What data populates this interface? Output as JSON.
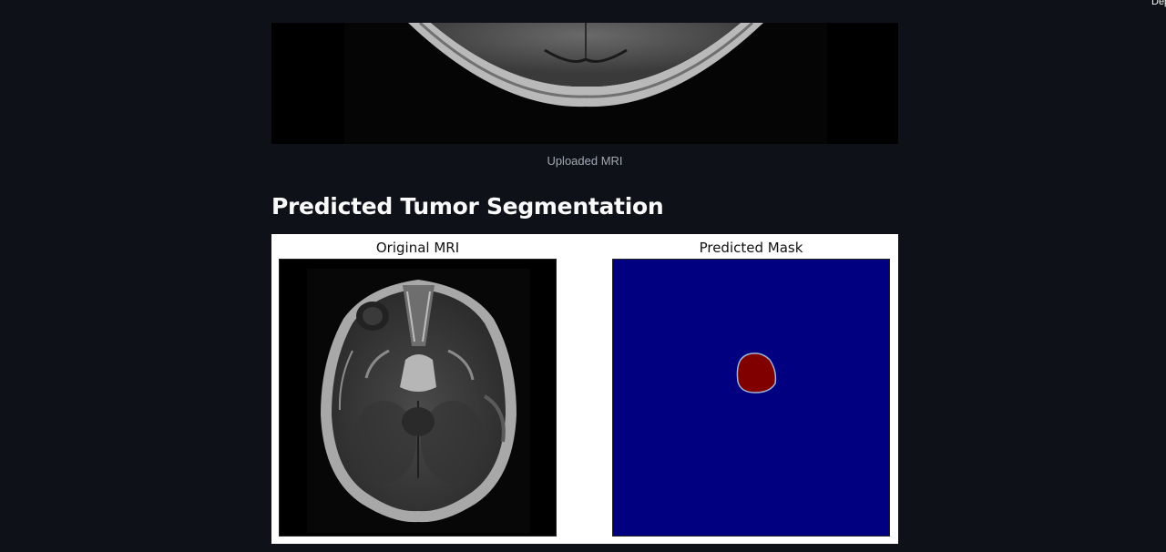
{
  "header": {
    "deploy_label": "Deploy"
  },
  "uploaded": {
    "caption": "Uploaded MRI"
  },
  "section": {
    "title": "Predicted Tumor Segmentation"
  },
  "figure": {
    "left_title": "Original MRI",
    "right_title": "Predicted Mask",
    "mask_background_color": "#000080",
    "mask_tumor_color": "#800000"
  }
}
